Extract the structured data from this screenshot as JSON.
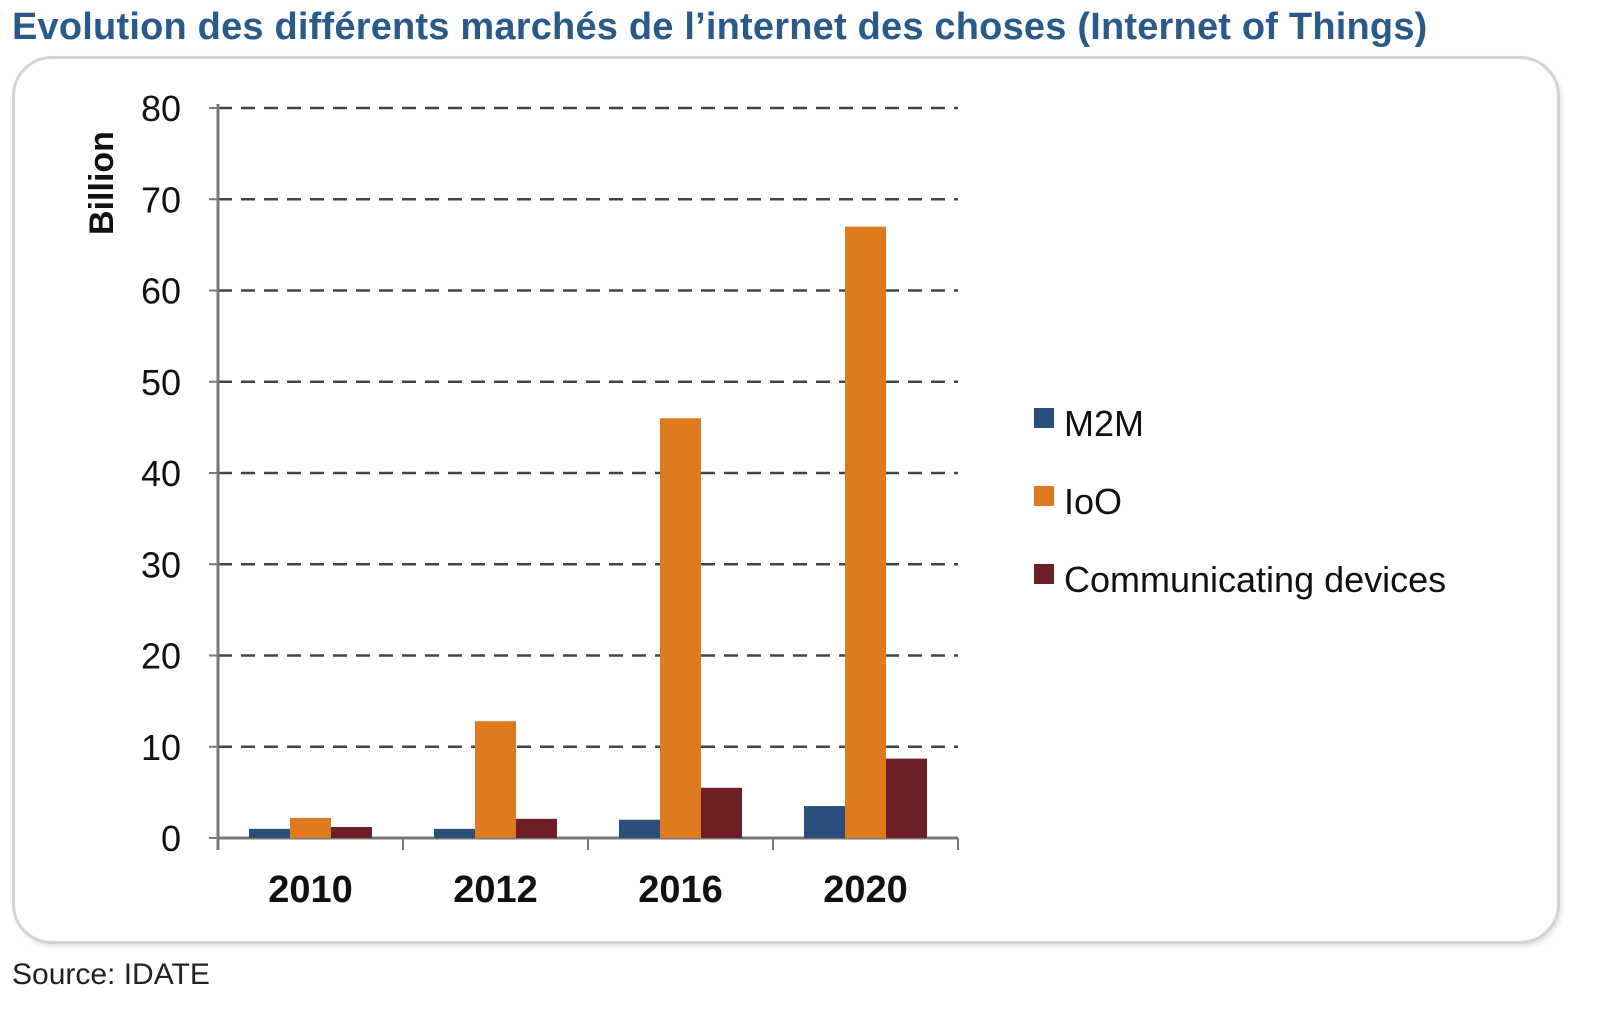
{
  "title": "Evolution des différents marchés de l’internet des choses (Internet of Things)",
  "source": "Source: IDATE",
  "chart_data": {
    "type": "bar",
    "ylabel": "Billion",
    "xlabel": "",
    "ylim": [
      0,
      80
    ],
    "yticks": [
      0,
      10,
      20,
      30,
      40,
      50,
      60,
      70,
      80
    ],
    "grid": "dashed horizontal",
    "legend_position": "right",
    "categories": [
      "2010",
      "2012",
      "2016",
      "2020"
    ],
    "series": [
      {
        "name": "M2M",
        "color": "#2b4f7c",
        "values": [
          1,
          1,
          2,
          3.5
        ]
      },
      {
        "name": "IoO",
        "color": "#e07a1e",
        "values": [
          2.2,
          12.8,
          46,
          67
        ]
      },
      {
        "name": "Communicating devices",
        "color": "#6e1f26",
        "values": [
          1.2,
          2.1,
          5.5,
          8.7
        ]
      }
    ]
  }
}
